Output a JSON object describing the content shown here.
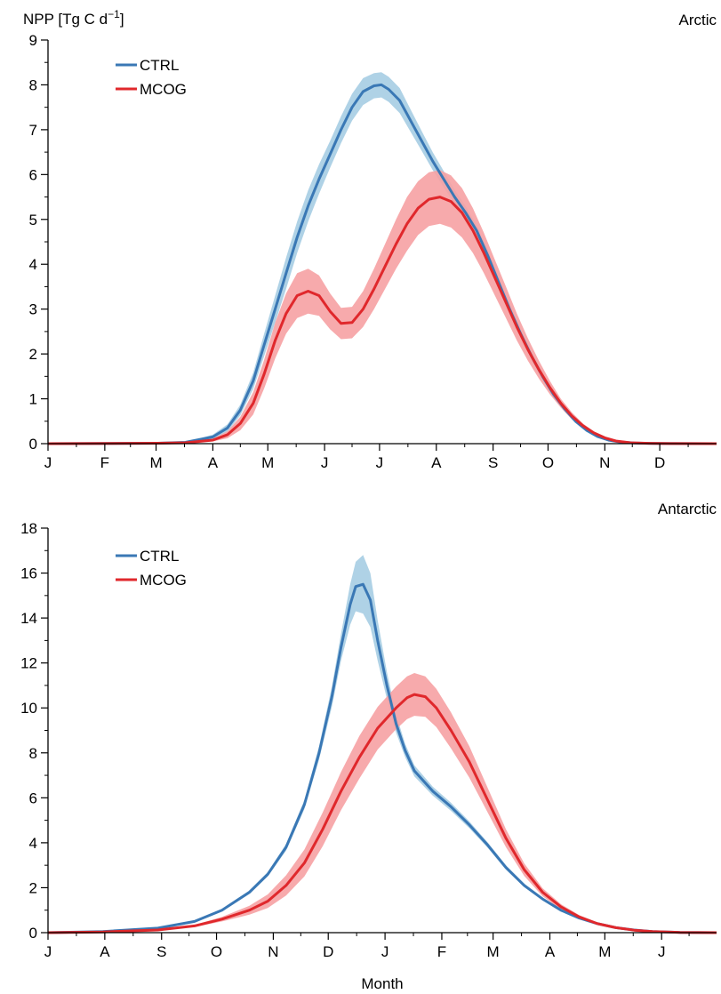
{
  "chart_data": [
    {
      "type": "line",
      "panel_label": "Arctic",
      "ylabel": "NPP [Tg C d",
      "ylabel_superscript": "−1",
      "ylabel_suffix": "]",
      "xlabel": "",
      "xlim": [
        0,
        365
      ],
      "ylim": [
        0,
        9
      ],
      "y_ticks": [
        0,
        1,
        2,
        3,
        4,
        5,
        6,
        7,
        8,
        9
      ],
      "x_tick_labels": [
        "J",
        "F",
        "M",
        "A",
        "M",
        "J",
        "J",
        "A",
        "S",
        "O",
        "N",
        "D"
      ],
      "x_tick_positions": [
        0,
        31,
        59,
        90,
        120,
        151,
        181,
        212,
        243,
        273,
        304,
        334
      ],
      "legend_position": "top-left",
      "series": [
        {
          "name": "CTRL",
          "color": "#3a78b5",
          "band_color": "#a6cde3",
          "x": [
            0,
            60,
            75,
            90,
            98,
            105,
            112,
            118,
            124,
            130,
            136,
            142,
            148,
            154,
            160,
            166,
            172,
            178,
            182,
            186,
            192,
            198,
            204,
            210,
            216,
            222,
            228,
            234,
            240,
            246,
            252,
            258,
            264,
            270,
            276,
            282,
            288,
            294,
            300,
            306,
            312,
            320,
            330,
            365
          ],
          "y": [
            0,
            0.01,
            0.03,
            0.15,
            0.35,
            0.75,
            1.4,
            2.2,
            3.0,
            3.8,
            4.6,
            5.3,
            5.9,
            6.45,
            7.0,
            7.5,
            7.85,
            7.98,
            8.0,
            7.9,
            7.65,
            7.2,
            6.75,
            6.3,
            5.9,
            5.5,
            5.15,
            4.75,
            4.2,
            3.6,
            3.0,
            2.45,
            1.95,
            1.5,
            1.1,
            0.78,
            0.5,
            0.3,
            0.16,
            0.08,
            0.04,
            0.015,
            0.005,
            0
          ],
          "band": [
            0,
            0,
            0,
            0.05,
            0.08,
            0.12,
            0.18,
            0.25,
            0.3,
            0.35,
            0.35,
            0.35,
            0.33,
            0.3,
            0.3,
            0.3,
            0.3,
            0.28,
            0.28,
            0.28,
            0.28,
            0.25,
            0.22,
            0.2,
            0.18,
            0.16,
            0.15,
            0.12,
            0.12,
            0.1,
            0.1,
            0.08,
            0.07,
            0.06,
            0.05,
            0.04,
            0.03,
            0.02,
            0.01,
            0.01,
            0,
            0,
            0,
            0
          ]
        },
        {
          "name": "MCOG",
          "color": "#e0282c",
          "band_color": "#f6a1a3",
          "x": [
            0,
            60,
            75,
            90,
            98,
            105,
            112,
            118,
            124,
            130,
            136,
            142,
            148,
            154,
            160,
            166,
            172,
            178,
            184,
            190,
            196,
            202,
            208,
            214,
            220,
            226,
            232,
            238,
            244,
            250,
            256,
            262,
            268,
            274,
            280,
            286,
            292,
            298,
            304,
            310,
            318,
            328,
            340,
            365
          ],
          "y": [
            0,
            0.01,
            0.02,
            0.08,
            0.2,
            0.45,
            0.9,
            1.55,
            2.3,
            2.9,
            3.3,
            3.4,
            3.3,
            2.95,
            2.68,
            2.7,
            3.0,
            3.45,
            3.95,
            4.45,
            4.9,
            5.25,
            5.45,
            5.5,
            5.4,
            5.15,
            4.75,
            4.25,
            3.7,
            3.15,
            2.6,
            2.1,
            1.65,
            1.25,
            0.9,
            0.62,
            0.4,
            0.24,
            0.13,
            0.06,
            0.02,
            0.008,
            0.002,
            0
          ],
          "band": [
            0,
            0,
            0,
            0.03,
            0.08,
            0.15,
            0.25,
            0.32,
            0.4,
            0.45,
            0.5,
            0.5,
            0.45,
            0.4,
            0.35,
            0.35,
            0.4,
            0.45,
            0.5,
            0.55,
            0.6,
            0.6,
            0.6,
            0.6,
            0.58,
            0.55,
            0.5,
            0.45,
            0.4,
            0.35,
            0.3,
            0.25,
            0.2,
            0.15,
            0.1,
            0.08,
            0.05,
            0.03,
            0.02,
            0.01,
            0,
            0,
            0,
            0
          ]
        }
      ]
    },
    {
      "type": "line",
      "panel_label": "Antarctic",
      "ylabel": "",
      "xlabel": "Month",
      "xlim": [
        0,
        365
      ],
      "ylim": [
        0,
        18
      ],
      "y_ticks": [
        0,
        2,
        4,
        6,
        8,
        10,
        12,
        14,
        16,
        18
      ],
      "x_tick_labels": [
        "J",
        "A",
        "S",
        "O",
        "N",
        "D",
        "J",
        "F",
        "M",
        "A",
        "M",
        "J"
      ],
      "x_tick_positions": [
        0,
        31,
        62,
        92,
        123,
        153,
        184,
        215,
        243,
        274,
        304,
        335
      ],
      "legend_position": "top-left",
      "series": [
        {
          "name": "CTRL",
          "color": "#3a78b5",
          "band_color": "#a6cde3",
          "x": [
            0,
            30,
            60,
            80,
            95,
            110,
            120,
            130,
            140,
            148,
            155,
            160,
            165,
            168,
            172,
            176,
            180,
            185,
            190,
            195,
            200,
            210,
            220,
            230,
            240,
            250,
            260,
            270,
            280,
            290,
            300,
            310,
            320,
            330,
            345,
            365
          ],
          "y": [
            0,
            0.05,
            0.2,
            0.5,
            1.0,
            1.8,
            2.6,
            3.8,
            5.7,
            8.0,
            10.5,
            12.7,
            14.6,
            15.4,
            15.5,
            14.8,
            13.0,
            11.0,
            9.3,
            8.1,
            7.2,
            6.3,
            5.6,
            4.8,
            3.9,
            2.9,
            2.1,
            1.5,
            1.0,
            0.65,
            0.4,
            0.22,
            0.12,
            0.05,
            0.01,
            0
          ],
          "band": [
            0,
            0,
            0.02,
            0.04,
            0.06,
            0.08,
            0.1,
            0.15,
            0.2,
            0.3,
            0.45,
            0.6,
            0.9,
            1.1,
            1.3,
            1.2,
            0.9,
            0.6,
            0.4,
            0.3,
            0.25,
            0.2,
            0.18,
            0.15,
            0.12,
            0.1,
            0.08,
            0.06,
            0.04,
            0.03,
            0.02,
            0.01,
            0.01,
            0,
            0,
            0
          ]
        },
        {
          "name": "MCOG",
          "color": "#e0282c",
          "band_color": "#f6a1a3",
          "x": [
            0,
            30,
            60,
            80,
            95,
            110,
            120,
            130,
            140,
            150,
            160,
            170,
            180,
            190,
            196,
            200,
            206,
            212,
            220,
            230,
            240,
            250,
            260,
            270,
            280,
            290,
            300,
            310,
            320,
            330,
            345,
            365
          ],
          "y": [
            0,
            0.03,
            0.12,
            0.3,
            0.6,
            1.0,
            1.4,
            2.1,
            3.1,
            4.6,
            6.3,
            7.8,
            9.1,
            10.0,
            10.45,
            10.6,
            10.5,
            10.0,
            9.0,
            7.6,
            5.9,
            4.2,
            2.8,
            1.8,
            1.15,
            0.7,
            0.4,
            0.22,
            0.11,
            0.05,
            0.01,
            0
          ],
          "band": [
            0,
            0,
            0.02,
            0.05,
            0.1,
            0.2,
            0.3,
            0.45,
            0.6,
            0.75,
            0.85,
            0.95,
            0.95,
            0.95,
            0.95,
            0.95,
            0.9,
            0.85,
            0.8,
            0.7,
            0.55,
            0.4,
            0.28,
            0.18,
            0.12,
            0.08,
            0.05,
            0.03,
            0.02,
            0.01,
            0,
            0
          ]
        }
      ]
    }
  ]
}
